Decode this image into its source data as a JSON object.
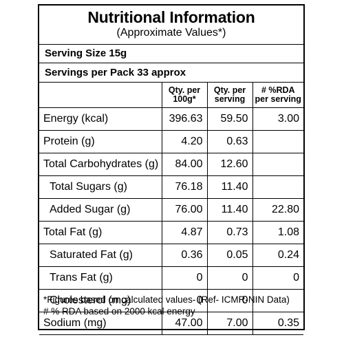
{
  "panel": {
    "title": "Nutritional Information",
    "subtitle": "(Approximate Values*)",
    "serving_size": "Serving Size 15g",
    "servings_per_pack": "Servings per Pack 33 approx"
  },
  "table": {
    "headers": {
      "per_100g_line1": "Qty. per",
      "per_100g_line2": "100g*",
      "per_serving_line1": "Qty. per",
      "per_serving_line2": "serving",
      "rda_line1": "# %RDA",
      "rda_line2": "per serving"
    },
    "rows": [
      {
        "name": "Energy (kcal)",
        "per_100g": "396.63",
        "per_serving": "59.50",
        "rda": "3.00"
      },
      {
        "name": "Protein (g)",
        "per_100g": "4.20",
        "per_serving": "0.63",
        "rda": ""
      },
      {
        "name": "Total Carbohydrates (g)",
        "per_100g": "84.00",
        "per_serving": "12.60",
        "rda": ""
      },
      {
        "name": "Total Sugars (g)",
        "per_100g": "76.18",
        "per_serving": "11.40",
        "rda": ""
      },
      {
        "name": "Added Sugar (g)",
        "per_100g": "76.00",
        "per_serving": "11.40",
        "rda": "22.80"
      },
      {
        "name": "Total Fat (g)",
        "per_100g": "4.87",
        "per_serving": "0.73",
        "rda": "1.08"
      },
      {
        "name": "Saturated Fat (g)",
        "per_100g": "0.36",
        "per_serving": "0.05",
        "rda": "0.24"
      },
      {
        "name": "Trans Fat (g)",
        "per_100g": "0",
        "per_serving": "0",
        "rda": "0"
      },
      {
        "name": "Cholesterol (mg)",
        "per_100g": "0",
        "per_serving": "0",
        "rda": ""
      },
      {
        "name": "Sodium (mg)",
        "per_100g": "47.00",
        "per_serving": "7.00",
        "rda": "0.35"
      }
    ]
  },
  "footer": {
    "line1": "*Figures based on calculated values- (Ref- ICMR-NIN Data)",
    "line2": "# % RDA based on 2000 kcal energy"
  }
}
